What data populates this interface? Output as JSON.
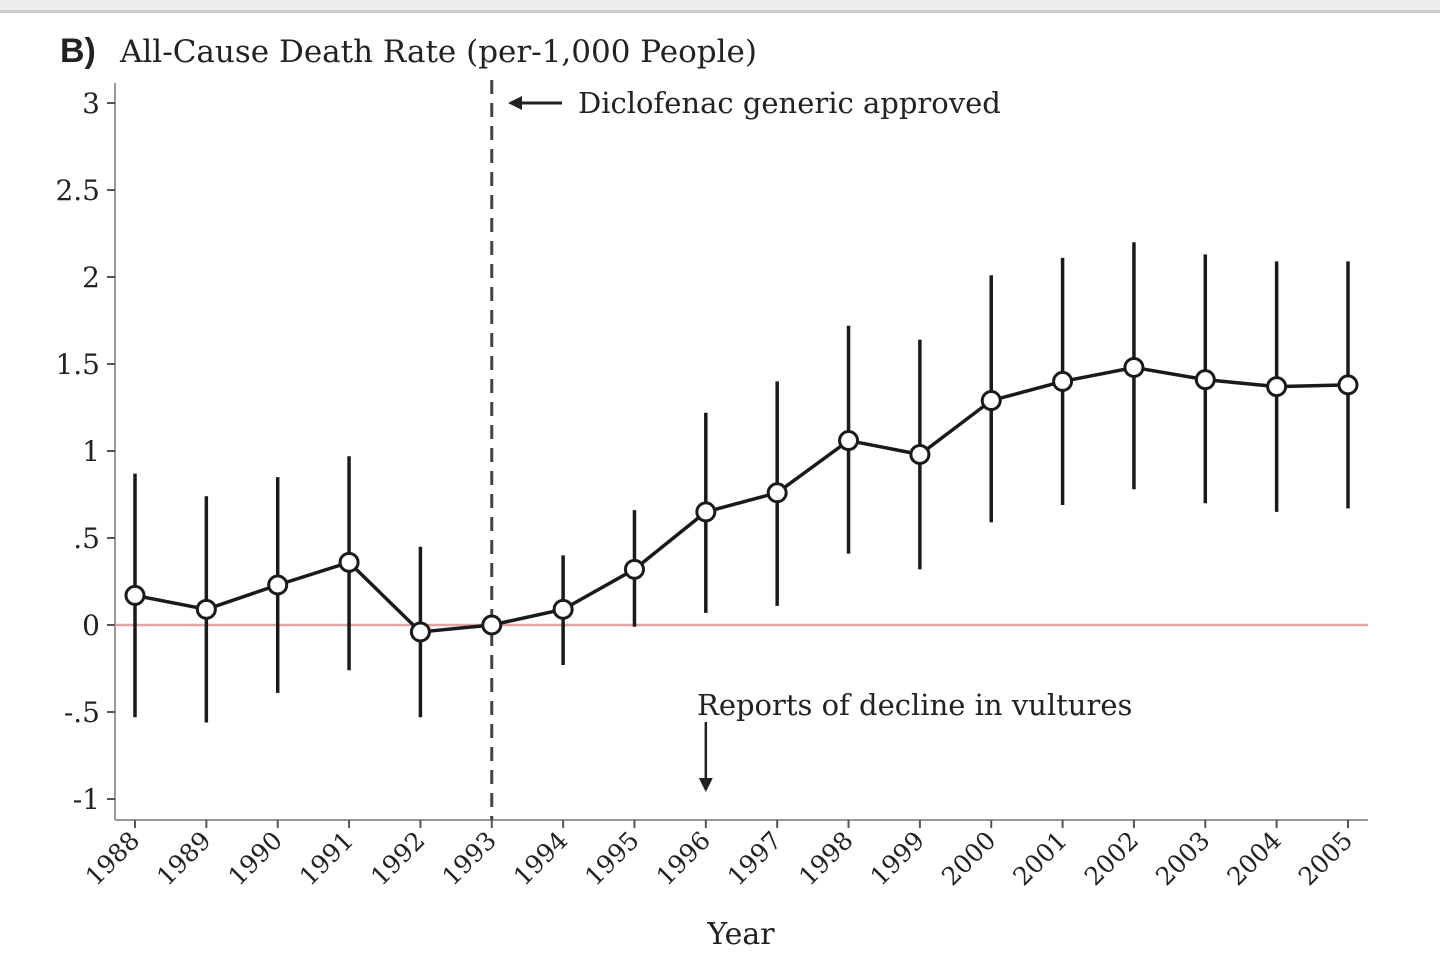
{
  "chart_data": {
    "type": "line",
    "panel_label": "B)",
    "title": "All-Cause Death Rate (per-1,000 People)",
    "xlabel": "Year",
    "ylabel": "",
    "ylim": [
      -1,
      3
    ],
    "yticks": [
      3,
      2.5,
      2,
      1.5,
      1,
      0.5,
      0,
      -0.5,
      -1
    ],
    "ytick_labels": [
      "3",
      "2.5",
      "2",
      "1.5",
      "1",
      ".5",
      "0",
      "-.5",
      "-1"
    ],
    "x": [
      "1988",
      "1989",
      "1990",
      "1991",
      "1992",
      "1993",
      "1994",
      "1995",
      "1996",
      "1997",
      "1998",
      "1999",
      "2000",
      "2001",
      "2002",
      "2003",
      "2004",
      "2005"
    ],
    "series": [
      {
        "values": [
          0.17,
          0.09,
          0.23,
          0.36,
          -0.04,
          0.0,
          0.09,
          0.32,
          0.65,
          0.76,
          1.06,
          0.98,
          1.29,
          1.4,
          1.48,
          1.41,
          1.37,
          1.38
        ],
        "ci_upper": [
          0.87,
          0.74,
          0.85,
          0.97,
          0.45,
          null,
          0.4,
          0.66,
          1.22,
          1.4,
          1.72,
          1.64,
          2.01,
          2.11,
          2.2,
          2.13,
          2.09,
          2.09
        ],
        "ci_lower": [
          -0.53,
          -0.56,
          -0.39,
          -0.26,
          -0.53,
          null,
          -0.23,
          -0.01,
          0.07,
          0.11,
          0.41,
          0.32,
          0.59,
          0.69,
          0.78,
          0.7,
          0.65,
          0.67
        ],
        "color": "#1a1a1a",
        "marker": "hollow-circle"
      }
    ],
    "reference_line": {
      "y": 0,
      "color": "#e8a0a0"
    },
    "vertical_line": {
      "x": "1993",
      "style": "dashed"
    },
    "annotations": [
      {
        "text": "Diclofenac generic approved",
        "at_x": "1993",
        "arrow": "left"
      },
      {
        "text": "Reports of decline in vultures",
        "at_x": "1996",
        "arrow": "down"
      }
    ],
    "grid": false,
    "legend": "none"
  }
}
